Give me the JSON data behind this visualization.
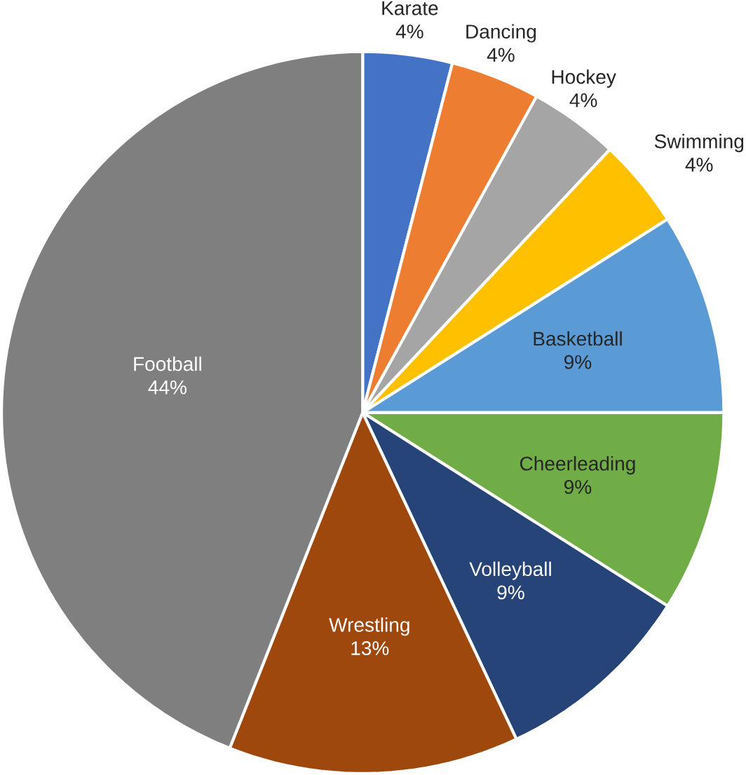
{
  "chart_data": {
    "type": "pie",
    "categories": [
      "Karate",
      "Dancing",
      "Hockey",
      "Swimming",
      "Basketball",
      "Cheerleading",
      "Volleyball",
      "Wrestling",
      "Football"
    ],
    "values": [
      4,
      4,
      4,
      4,
      9,
      9,
      9,
      13,
      44
    ],
    "colors": [
      "#4472c4",
      "#ed7d31",
      "#a5a5a5",
      "#ffc000",
      "#5b9bd5",
      "#70ad47",
      "#264478",
      "#9e480e",
      "#7f7f7f"
    ],
    "value_labels": [
      "4%",
      "4%",
      "4%",
      "4%",
      "9%",
      "9%",
      "9%",
      "13%",
      "44%"
    ]
  }
}
